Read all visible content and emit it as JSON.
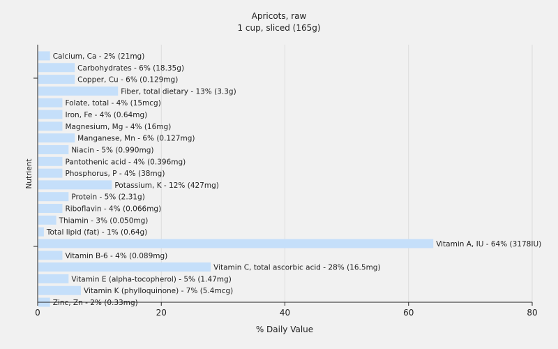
{
  "chart_data": {
    "type": "bar",
    "orientation": "horizontal",
    "title": "Apricots, raw",
    "subtitle": "1 cup, sliced (165g)",
    "xlabel": "% Daily Value",
    "ylabel": "Nutrient",
    "xlim": [
      0,
      80
    ],
    "xticks": [
      0,
      20,
      40,
      60,
      80
    ],
    "grid": true,
    "bar_color": "#c5dffa",
    "categories": [
      "Calcium, Ca",
      "Carbohydrates",
      "Copper, Cu",
      "Fiber, total dietary",
      "Folate, total",
      "Iron, Fe",
      "Magnesium, Mg",
      "Manganese, Mn",
      "Niacin",
      "Pantothenic acid",
      "Phosphorus, P",
      "Potassium, K",
      "Protein",
      "Riboflavin",
      "Thiamin",
      "Total lipid (fat)",
      "Vitamin A, IU",
      "Vitamin B-6",
      "Vitamin C, total ascorbic acid",
      "Vitamin E (alpha-tocopherol)",
      "Vitamin K (phylloquinone)",
      "Zinc, Zn"
    ],
    "values": [
      2,
      6,
      6,
      13,
      4,
      4,
      4,
      6,
      5,
      4,
      4,
      12,
      5,
      4,
      3,
      1,
      64,
      4,
      28,
      5,
      7,
      2
    ],
    "labels": [
      "Calcium, Ca - 2% (21mg)",
      "Carbohydrates - 6% (18.35g)",
      "Copper, Cu - 6% (0.129mg)",
      "Fiber, total dietary - 13% (3.3g)",
      "Folate, total - 4% (15mcg)",
      "Iron, Fe - 4% (0.64mg)",
      "Magnesium, Mg - 4% (16mg)",
      "Manganese, Mn - 6% (0.127mg)",
      "Niacin - 5% (0.990mg)",
      "Pantothenic acid - 4% (0.396mg)",
      "Phosphorus, P - 4% (38mg)",
      "Potassium, K - 12% (427mg)",
      "Protein - 5% (2.31g)",
      "Riboflavin - 4% (0.066mg)",
      "Thiamin - 3% (0.050mg)",
      "Total lipid (fat) - 1% (0.64g)",
      "Vitamin A, IU - 64% (3178IU)",
      "Vitamin B-6 - 4% (0.089mg)",
      "Vitamin C, total ascorbic acid - 28% (16.5mg)",
      "Vitamin E (alpha-tocopherol) - 5% (1.47mg)",
      "Vitamin K (phylloquinone) - 7% (5.4mcg)",
      "Zinc, Zn - 2% (0.33mg)"
    ]
  }
}
